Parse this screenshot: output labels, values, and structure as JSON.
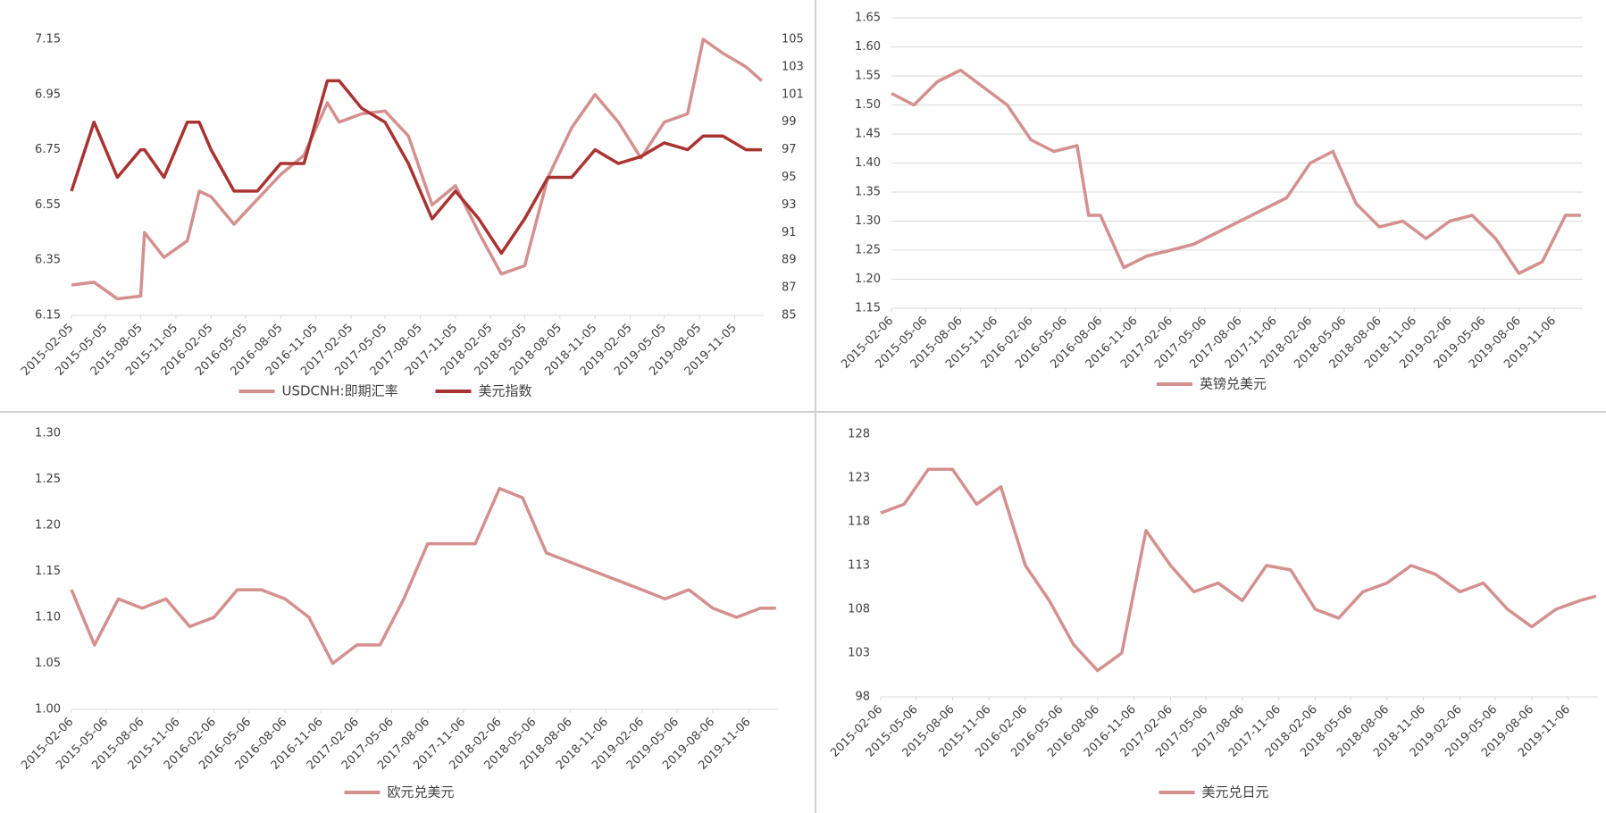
{
  "chart_data": [
    {
      "type": "line",
      "x": [
        "2015-02-05",
        "2015-04-05",
        "2015-06-05",
        "2015-08-05",
        "2015-08-15",
        "2015-10-05",
        "2015-12-05",
        "2016-01-05",
        "2016-02-05",
        "2016-04-05",
        "2016-06-05",
        "2016-08-05",
        "2016-10-05",
        "2016-12-05",
        "2017-01-05",
        "2017-03-05",
        "2017-05-05",
        "2017-07-05",
        "2017-09-05",
        "2017-11-05",
        "2018-01-05",
        "2018-03-05",
        "2018-05-05",
        "2018-07-05",
        "2018-09-05",
        "2018-11-05",
        "2019-01-05",
        "2019-03-05",
        "2019-05-05",
        "2019-07-05",
        "2019-08-15",
        "2019-10-05",
        "2019-12-05",
        "2020-01-15"
      ],
      "series": [
        {
          "name": "USDCNH:即期汇率",
          "color": "#d4908f",
          "values": [
            6.26,
            6.27,
            6.21,
            6.22,
            6.45,
            6.36,
            6.42,
            6.6,
            6.58,
            6.48,
            6.57,
            6.66,
            6.73,
            6.92,
            6.85,
            6.88,
            6.89,
            6.8,
            6.55,
            6.62,
            6.45,
            6.3,
            6.33,
            6.65,
            6.83,
            6.95,
            6.85,
            6.72,
            6.85,
            6.88,
            7.15,
            7.1,
            7.05,
            7.0
          ]
        },
        {
          "name": "美元指数",
          "color": "#a93331",
          "axis": "y2",
          "values": [
            94,
            99,
            95,
            97,
            97,
            95,
            99,
            99,
            97,
            94,
            94,
            96,
            96,
            102,
            102,
            100,
            99,
            96,
            92,
            94,
            92,
            89.5,
            92,
            95,
            95,
            97,
            96,
            96.5,
            97.5,
            97,
            98,
            98,
            97,
            97
          ]
        }
      ],
      "xlim": [
        "2015-02-05",
        "2020-01-20"
      ],
      "xticks": [
        "2015-02-05",
        "2015-05-05",
        "2015-08-05",
        "2015-11-05",
        "2016-02-05",
        "2016-05-05",
        "2016-08-05",
        "2016-11-05",
        "2017-02-05",
        "2017-05-05",
        "2017-08-05",
        "2017-11-05",
        "2018-02-05",
        "2018-05-05",
        "2018-08-05",
        "2018-11-05",
        "2019-02-05",
        "2019-05-05",
        "2019-08-05",
        "2019-11-05"
      ],
      "ylim": [
        6.15,
        7.15
      ],
      "yticks": [
        6.15,
        6.35,
        6.55,
        6.75,
        6.95,
        7.15
      ],
      "y2lim": [
        85,
        105
      ],
      "y2ticks": [
        85,
        87,
        89,
        91,
        93,
        95,
        97,
        99,
        101,
        103,
        105
      ],
      "grid": false,
      "legend": "bottom"
    },
    {
      "type": "line",
      "x": [
        "2015-02-06",
        "2015-04-06",
        "2015-06-06",
        "2015-08-06",
        "2015-10-06",
        "2015-12-06",
        "2016-02-06",
        "2016-04-06",
        "2016-06-06",
        "2016-07-06",
        "2016-08-06",
        "2016-10-06",
        "2016-12-06",
        "2017-02-06",
        "2017-04-06",
        "2017-06-06",
        "2017-08-06",
        "2017-10-06",
        "2017-12-06",
        "2018-02-06",
        "2018-04-06",
        "2018-06-06",
        "2018-08-06",
        "2018-10-06",
        "2018-12-06",
        "2019-02-06",
        "2019-04-06",
        "2019-06-06",
        "2019-08-06",
        "2019-10-06",
        "2019-12-06",
        "2020-01-15"
      ],
      "series": [
        {
          "name": "英镑兑美元",
          "color": "#d4908f",
          "values": [
            1.52,
            1.5,
            1.54,
            1.56,
            1.53,
            1.5,
            1.44,
            1.42,
            1.43,
            1.31,
            1.31,
            1.22,
            1.24,
            1.25,
            1.26,
            1.28,
            1.3,
            1.32,
            1.34,
            1.4,
            1.42,
            1.33,
            1.29,
            1.3,
            1.27,
            1.3,
            1.31,
            1.27,
            1.21,
            1.23,
            1.31,
            1.31
          ]
        }
      ],
      "xlim": [
        "2015-02-06",
        "2020-01-20"
      ],
      "xticks": [
        "2015-02-06",
        "2015-05-06",
        "2015-08-06",
        "2015-11-06",
        "2016-02-06",
        "2016-05-06",
        "2016-08-06",
        "2016-11-06",
        "2017-02-06",
        "2017-05-06",
        "2017-08-06",
        "2017-11-06",
        "2018-02-06",
        "2018-05-06",
        "2018-08-06",
        "2018-11-06",
        "2019-02-06",
        "2019-05-06",
        "2019-08-06",
        "2019-11-06"
      ],
      "ylim": [
        1.15,
        1.65
      ],
      "yticks": [
        1.15,
        {
          "value": 1.2,
          "label": "1.20"
        },
        1.25,
        {
          "value": 1.3,
          "label": "1.30"
        },
        1.35,
        {
          "value": 1.4,
          "label": "1.40"
        },
        1.45,
        {
          "value": 1.5,
          "label": "1.50"
        },
        1.55,
        {
          "value": 1.6,
          "label": "1.60"
        },
        1.65
      ],
      "grid": true,
      "legend": "bottom"
    },
    {
      "type": "line",
      "x": [
        "2015-02-06",
        "2015-04-06",
        "2015-06-06",
        "2015-08-06",
        "2015-10-06",
        "2015-12-06",
        "2016-02-06",
        "2016-04-06",
        "2016-06-06",
        "2016-08-06",
        "2016-10-06",
        "2016-12-06",
        "2017-02-06",
        "2017-04-06",
        "2017-06-06",
        "2017-08-06",
        "2017-10-06",
        "2017-12-06",
        "2018-02-06",
        "2018-04-06",
        "2018-06-06",
        "2018-08-06",
        "2018-10-06",
        "2018-12-06",
        "2019-02-06",
        "2019-04-06",
        "2019-06-06",
        "2019-08-06",
        "2019-10-06",
        "2019-12-06",
        "2020-01-15"
      ],
      "series": [
        {
          "name": "欧元兑美元",
          "color": "#d4908f",
          "values": [
            1.13,
            1.07,
            1.12,
            1.11,
            1.12,
            1.09,
            1.1,
            1.13,
            1.13,
            1.12,
            1.1,
            1.05,
            1.07,
            1.07,
            1.12,
            1.18,
            1.18,
            1.18,
            1.24,
            1.23,
            1.17,
            1.16,
            1.15,
            1.14,
            1.13,
            1.12,
            1.13,
            1.11,
            1.1,
            1.11,
            1.11
          ]
        }
      ],
      "xlim": [
        "2015-02-06",
        "2020-01-20"
      ],
      "xticks": [
        "2015-02-06",
        "2015-05-06",
        "2015-08-06",
        "2015-11-06",
        "2016-02-06",
        "2016-05-06",
        "2016-08-06",
        "2016-11-06",
        "2017-02-06",
        "2017-05-06",
        "2017-08-06",
        "2017-11-06",
        "2018-02-06",
        "2018-05-06",
        "2018-08-06",
        "2018-11-06",
        "2019-02-06",
        "2019-05-06",
        "2019-08-06",
        "2019-11-06"
      ],
      "ylim": [
        1.0,
        1.3
      ],
      "yticks": [
        {
          "value": 1.0,
          "label": "1.00"
        },
        1.05,
        {
          "value": 1.1,
          "label": "1.10"
        },
        1.15,
        {
          "value": 1.2,
          "label": "1.20"
        },
        1.25,
        {
          "value": 1.3,
          "label": "1.30"
        }
      ],
      "grid": false,
      "legend": "bottom"
    },
    {
      "type": "line",
      "x": [
        "2015-02-06",
        "2015-04-06",
        "2015-06-06",
        "2015-08-06",
        "2015-10-06",
        "2015-12-06",
        "2016-02-06",
        "2016-04-06",
        "2016-06-06",
        "2016-08-06",
        "2016-10-06",
        "2016-12-06",
        "2017-02-06",
        "2017-04-06",
        "2017-06-06",
        "2017-08-06",
        "2017-10-06",
        "2017-12-06",
        "2018-02-06",
        "2018-04-06",
        "2018-06-06",
        "2018-08-06",
        "2018-10-06",
        "2018-12-06",
        "2019-02-06",
        "2019-04-06",
        "2019-06-06",
        "2019-08-06",
        "2019-10-06",
        "2019-12-06",
        "2020-01-15"
      ],
      "series": [
        {
          "name": "美元兑日元",
          "color": "#d4908f",
          "values": [
            119,
            120,
            124,
            124,
            120,
            122,
            113,
            109,
            104,
            101,
            103,
            117,
            113,
            110,
            111,
            109,
            113,
            112.5,
            108,
            107,
            110,
            111,
            113,
            112,
            110,
            111,
            108,
            106,
            108,
            109,
            109.5
          ]
        }
      ],
      "xlim": [
        "2015-02-06",
        "2020-01-20"
      ],
      "xticks": [
        "2015-02-06",
        "2015-05-06",
        "2015-08-06",
        "2015-11-06",
        "2016-02-06",
        "2016-05-06",
        "2016-08-06",
        "2016-11-06",
        "2017-02-06",
        "2017-05-06",
        "2017-08-06",
        "2017-11-06",
        "2018-02-06",
        "2018-05-06",
        "2018-08-06",
        "2018-11-06",
        "2019-02-06",
        "2019-05-06",
        "2019-08-06",
        "2019-11-06"
      ],
      "ylim": [
        98,
        128
      ],
      "yticks": [
        98,
        103,
        108,
        113,
        118,
        123,
        128
      ],
      "grid": false,
      "legend": "bottom"
    }
  ]
}
